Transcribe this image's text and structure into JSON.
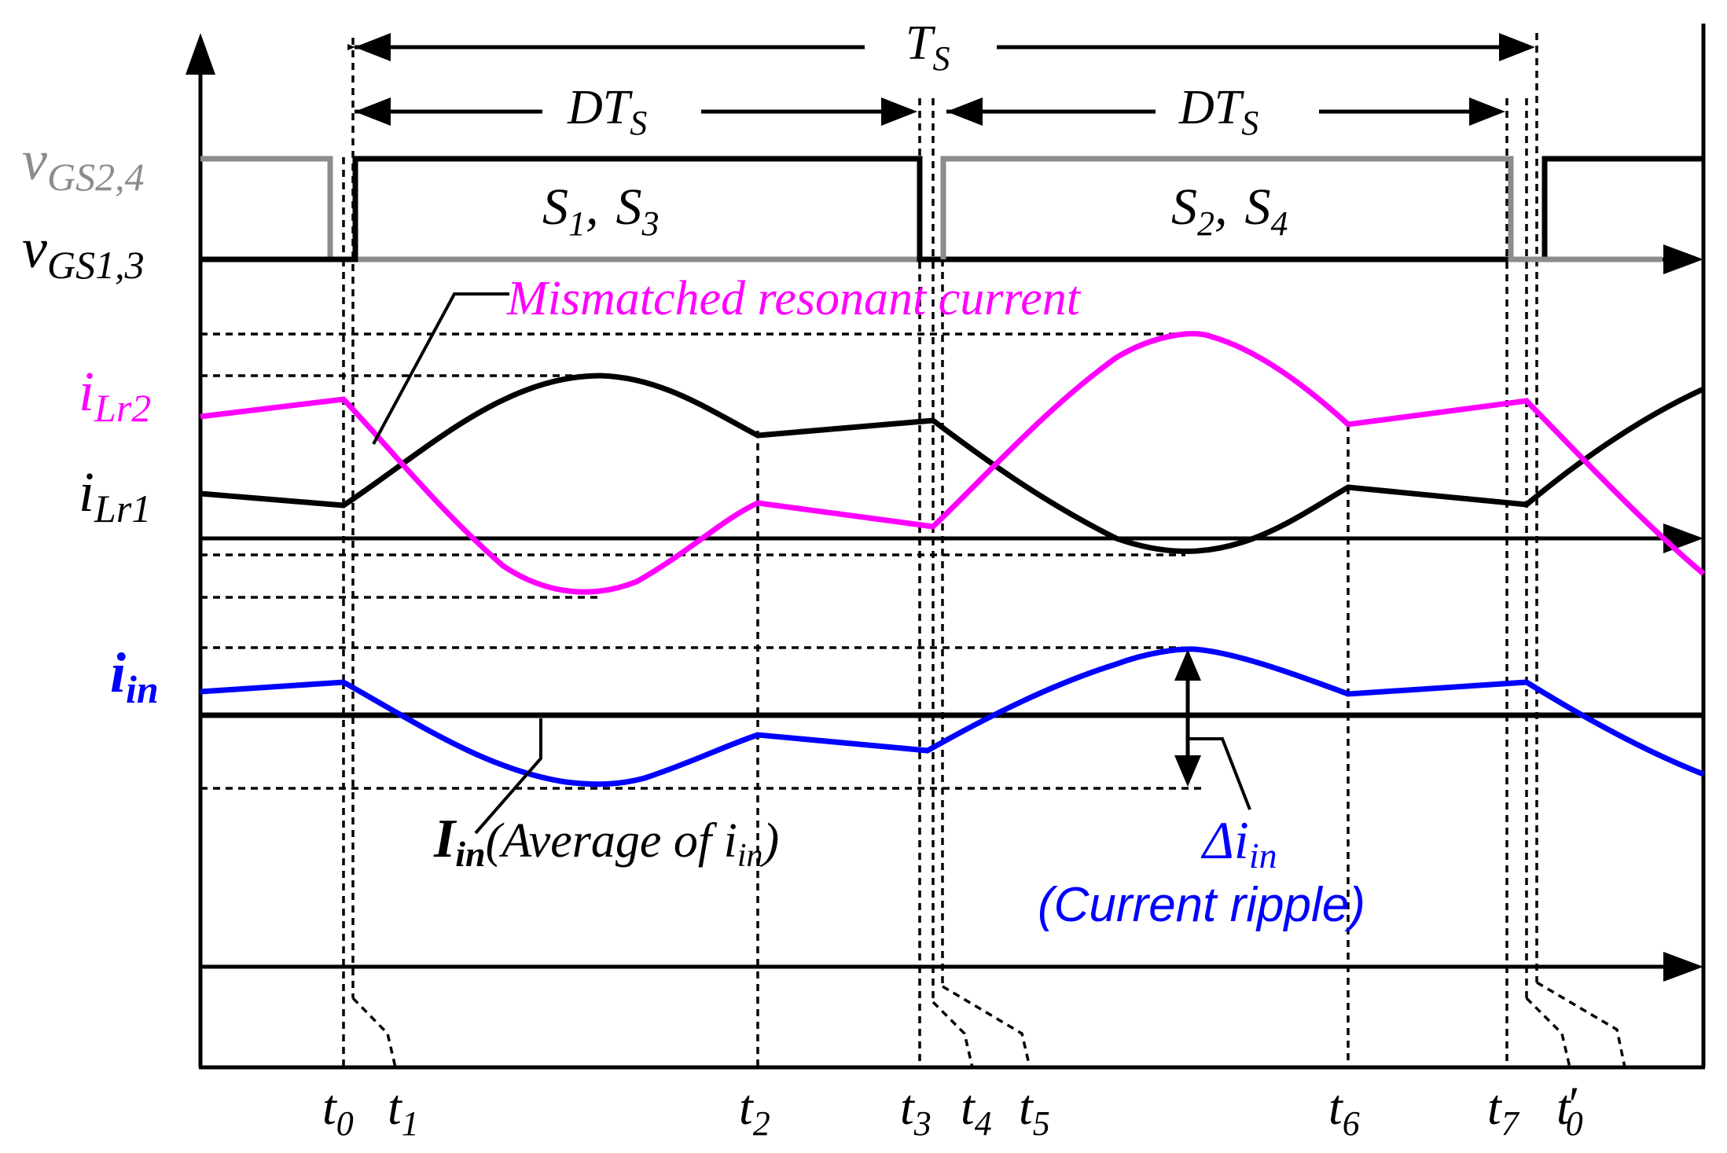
{
  "colors": {
    "black": "#000000",
    "gray": "#8c8c8c",
    "magenta": "#ff00ff",
    "blue": "#0000ff",
    "background": "#ffffff"
  },
  "signals": {
    "vgs24": {
      "base": "v",
      "sub": "GS2,4"
    },
    "vgs13": {
      "base": "v",
      "sub": "GS1,3"
    },
    "ilr2": {
      "base": "i",
      "sub": "Lr2"
    },
    "ilr1": {
      "base": "i",
      "sub": "Lr1"
    },
    "iin": {
      "base": "i",
      "sub": "in"
    }
  },
  "period": {
    "base": "T",
    "sub": "S"
  },
  "duty": {
    "base": "DT",
    "sub": "S"
  },
  "switch_pairs": {
    "first": {
      "a": "S",
      "a_sub": "1",
      "sep": ",",
      "b": "S",
      "b_sub": "3"
    },
    "second": {
      "a": "S",
      "a_sub": "2",
      "sep": ",",
      "b": "S",
      "b_sub": "4"
    }
  },
  "annotations": {
    "mismatch": "Mismatched resonant current",
    "average": {
      "main": "I",
      "main_sub": "in",
      "text": "(Average of i",
      "text_sub": "in",
      "close": ")"
    },
    "ripple": {
      "symbol": "Δi",
      "sub": "in",
      "text": "(Current ripple)"
    }
  },
  "time_labels": [
    {
      "base": "t",
      "sub": "0",
      "prime": ""
    },
    {
      "base": "t",
      "sub": "1",
      "prime": ""
    },
    {
      "base": "t",
      "sub": "2",
      "prime": ""
    },
    {
      "base": "t",
      "sub": "3",
      "prime": ""
    },
    {
      "base": "t",
      "sub": "4",
      "prime": ""
    },
    {
      "base": "t",
      "sub": "5",
      "prime": ""
    },
    {
      "base": "t",
      "sub": "6",
      "prime": ""
    },
    {
      "base": "t",
      "sub": "7",
      "prime": ""
    },
    {
      "base": "t",
      "sub": "0",
      "prime": "′"
    }
  ]
}
